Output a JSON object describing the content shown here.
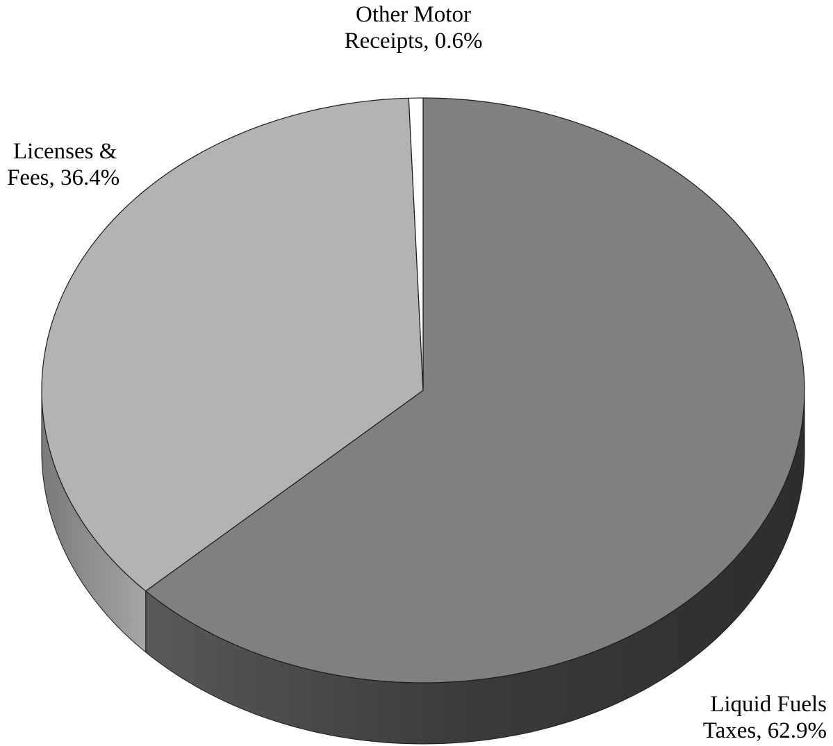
{
  "chart_data": {
    "type": "pie",
    "title": "",
    "slices": [
      {
        "label_lines": [
          "Liquid Fuels",
          "Taxes, 62.9%"
        ],
        "name": "Liquid Fuels Taxes",
        "value": 62.9,
        "color": "#808080",
        "side_color": "#333333"
      },
      {
        "label_lines": [
          "Licenses &",
          "Fees, 36.4%"
        ],
        "name": "Licenses & Fees",
        "value": 36.4,
        "color": "#b3b3b3",
        "side_color": "#6b6b6b"
      },
      {
        "label_lines": [
          "Other Motor",
          "Receipts, 0.6%"
        ],
        "name": "Other Motor Receipts",
        "value": 0.6,
        "color": "#ffffff",
        "side_color": "#e6e6e6"
      }
    ],
    "style": "3d",
    "grid": false,
    "legend": "none"
  }
}
